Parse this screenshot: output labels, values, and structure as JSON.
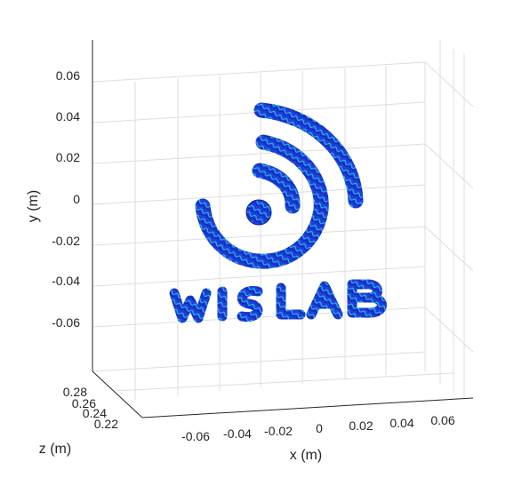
{
  "chart_data": {
    "type": "scatter",
    "title": "",
    "xlabel": "x (m)",
    "ylabel": "y (m)",
    "zlabel": "z (m)",
    "x_ticks": [
      "-0.06",
      "-0.04",
      "-0.02",
      "0",
      "0.02",
      "0.04",
      "0.06"
    ],
    "y_ticks": [
      "0.06",
      "0.04",
      "0.02",
      "0",
      "-0.02",
      "-0.04",
      "-0.06"
    ],
    "z_ticks": [
      "0.28",
      "0.26",
      "0.24",
      "0.22"
    ],
    "grid": true,
    "depicted_shape": "WiSLAB logo (signal arcs above lettering)",
    "surface_color": "#1f3fd8",
    "surface_highlight": "#27c7e8"
  }
}
